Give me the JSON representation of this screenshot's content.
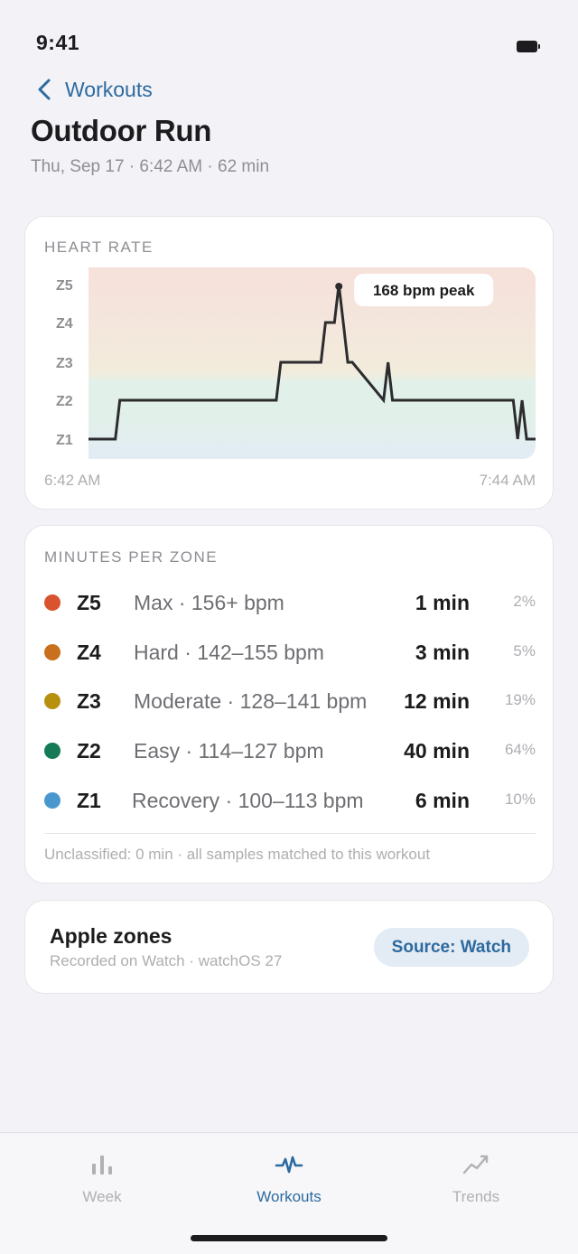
{
  "status": {
    "time": "9:41"
  },
  "nav": {
    "back_label": "Workouts"
  },
  "header": {
    "title": "Outdoor Run",
    "subtitle": "Thu, Sep 17 · 6:42 AM · 62 min"
  },
  "heart_rate": {
    "label": "HEART RATE",
    "start_time": "6:42 AM",
    "end_time": "7:44 AM",
    "peak_label": "168 bpm peak",
    "zone_colors": {
      "Z5": "#f6e1da",
      "Z4": "#f4e6dc",
      "Z3": "#f2ecdc",
      "Z2": "#e2f0ea",
      "Z1": "#e1ecf5"
    },
    "line_color": "#2c2c2e"
  },
  "chart_data": {
    "type": "line",
    "title": "HEART RATE",
    "xlabel": "",
    "ylabel": "",
    "x_range": [
      "6:42 AM",
      "7:44 AM"
    ],
    "y_categories": [
      "Z1",
      "Z2",
      "Z3",
      "Z4",
      "Z5"
    ],
    "annotation": "168 bpm peak",
    "series": [
      {
        "x_minutes": [
          0,
          3,
          3.5,
          21,
          21.5,
          26,
          26.5,
          27.5,
          28,
          28.5,
          29,
          29.5,
          33,
          33.5,
          34,
          34.5,
          47.5,
          48,
          48.5,
          49,
          49.5,
          50
        ],
        "y_zone": [
          1,
          1,
          2,
          2,
          3,
          3,
          4,
          4,
          5,
          4,
          3,
          3,
          2,
          3,
          2,
          2,
          2,
          1,
          2,
          1,
          1,
          1
        ]
      }
    ],
    "grid": false
  },
  "zones": {
    "label": "MINUTES PER ZONE",
    "rows": [
      {
        "name": "Z5",
        "desc": "Max · 156+ bpm",
        "minutes": "1 min",
        "pct": "2%",
        "color": "#d9532f"
      },
      {
        "name": "Z4",
        "desc": "Hard · 142–155 bpm",
        "minutes": "3 min",
        "pct": "5%",
        "color": "#c8701e"
      },
      {
        "name": "Z3",
        "desc": "Moderate · 128–141 bpm",
        "minutes": "12 min",
        "pct": "19%",
        "color": "#b8900f"
      },
      {
        "name": "Z2",
        "desc": "Easy · 114–127 bpm",
        "minutes": "40 min",
        "pct": "64%",
        "color": "#157a55"
      },
      {
        "name": "Z1",
        "desc": "Recovery · 100–113 bpm",
        "minutes": "6 min",
        "pct": "10%",
        "color": "#4a97cf"
      }
    ],
    "footnote": "Unclassified: 0 min · all samples matched to this workout"
  },
  "source": {
    "title": "Apple zones",
    "subtitle": "Recorded on Watch · watchOS 27",
    "pill_label": "Source: Watch"
  },
  "tabs": [
    {
      "label": "Week",
      "icon": "bar-chart-icon",
      "active": false
    },
    {
      "label": "Workouts",
      "icon": "waveform-icon",
      "active": true
    },
    {
      "label": "Trends",
      "icon": "trend-line-icon",
      "active": false
    }
  ]
}
